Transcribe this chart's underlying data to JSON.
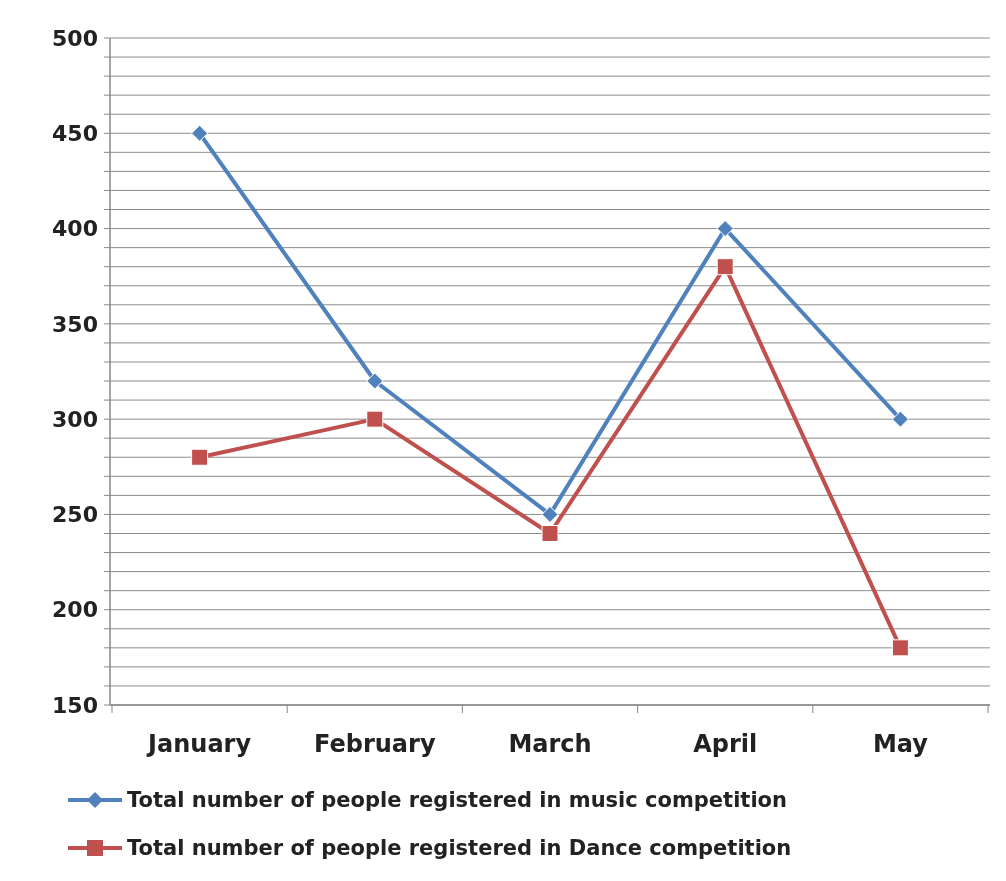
{
  "chart_data": {
    "type": "line",
    "categories": [
      "January",
      "February",
      "March",
      "April",
      "May"
    ],
    "series": [
      {
        "name": "Total number of people registered in music competition",
        "color": "#4f81bd",
        "marker": "diamond",
        "values": [
          450,
          320,
          250,
          400,
          300
        ]
      },
      {
        "name": "Total number of people registered in Dance competition",
        "color": "#c0504d",
        "marker": "square",
        "values": [
          280,
          300,
          240,
          380,
          180
        ]
      }
    ],
    "ylim": [
      150,
      500
    ],
    "yticks": [
      150,
      {
        "value": 160,
        "label": null
      },
      {
        "value": 170,
        "label": null
      },
      {
        "value": 180,
        "label": null
      },
      {
        "value": 190,
        "label": null
      },
      200,
      {
        "value": 210,
        "label": null
      },
      {
        "value": 220,
        "label": null
      },
      {
        "value": 230,
        "label": null
      },
      {
        "value": 240,
        "label": null
      },
      250,
      {
        "value": 260,
        "label": null
      },
      {
        "value": 270,
        "label": null
      },
      {
        "value": 280,
        "label": null
      },
      {
        "value": 290,
        "label": null
      },
      300,
      {
        "value": 310,
        "label": null
      },
      {
        "value": 320,
        "label": null
      },
      {
        "value": 330,
        "label": null
      },
      {
        "value": 340,
        "label": null
      },
      350,
      {
        "value": 360,
        "label": null
      },
      {
        "value": 370,
        "label": null
      },
      {
        "value": 380,
        "label": null
      },
      {
        "value": 390,
        "label": null
      },
      400,
      {
        "value": 410,
        "label": null
      },
      {
        "value": 420,
        "label": null
      },
      {
        "value": 430,
        "label": null
      },
      {
        "value": 440,
        "label": null
      },
      450,
      {
        "value": 460,
        "label": null
      },
      {
        "value": 470,
        "label": null
      },
      {
        "value": 480,
        "label": null
      },
      {
        "value": 490,
        "label": null
      },
      500
    ],
    "grid": "y",
    "legend": "bottom",
    "line_style": "solid"
  }
}
